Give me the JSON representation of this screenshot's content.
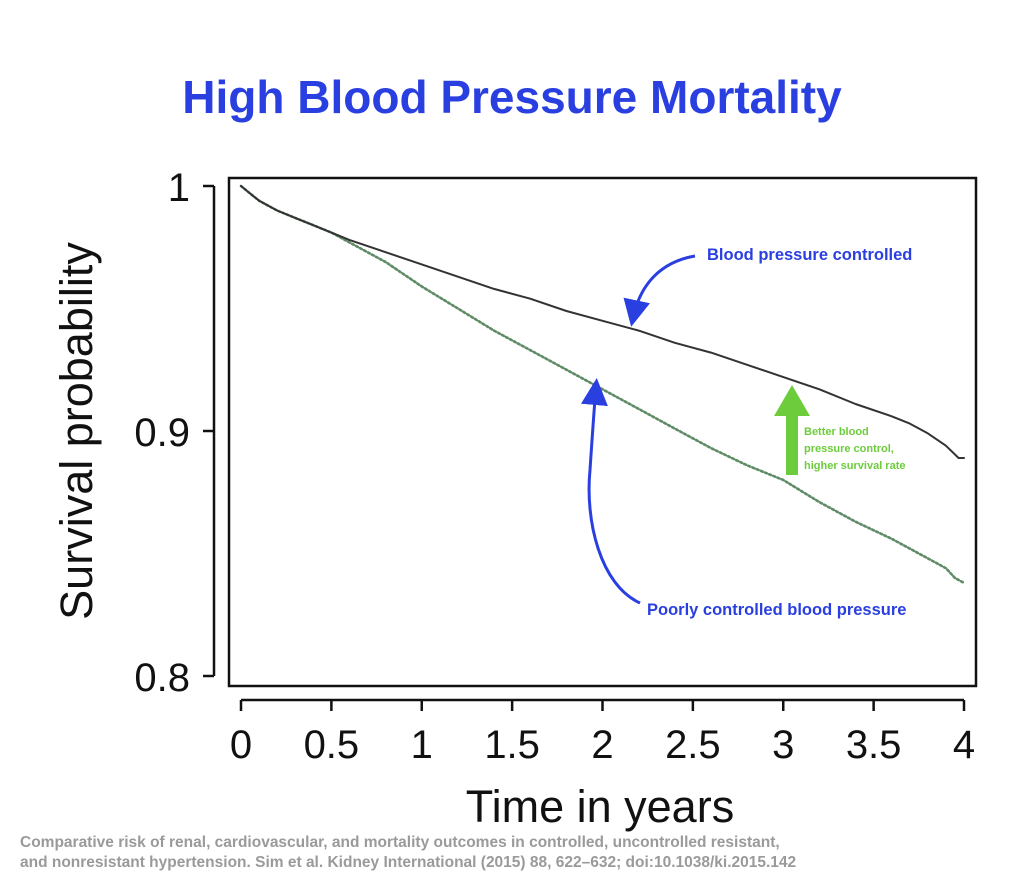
{
  "chart_data": {
    "type": "line",
    "title": "High Blood Pressure Mortality",
    "xlabel": "Time in years",
    "ylabel": "Survival probability",
    "xlim": [
      0,
      4
    ],
    "ylim": [
      0.8,
      1.0
    ],
    "x_ticks": [
      "0",
      "0.5",
      "1",
      "1.5",
      "2",
      "2.5",
      "3",
      "3.5",
      "4"
    ],
    "y_ticks": [
      "0.8",
      "0.9",
      "1"
    ],
    "grid": false,
    "series": [
      {
        "name": "Blood pressure controlled",
        "color": "#333333",
        "style": "solid",
        "x": [
          0,
          0.05,
          0.1,
          0.2,
          0.3,
          0.4,
          0.5,
          0.6,
          0.8,
          1.0,
          1.2,
          1.4,
          1.6,
          1.8,
          2.0,
          2.2,
          2.4,
          2.6,
          2.8,
          3.0,
          3.2,
          3.4,
          3.6,
          3.7,
          3.8,
          3.9,
          3.97,
          4.0
        ],
        "y": [
          1.0,
          0.997,
          0.994,
          0.99,
          0.987,
          0.984,
          0.981,
          0.978,
          0.973,
          0.968,
          0.963,
          0.958,
          0.954,
          0.949,
          0.945,
          0.941,
          0.936,
          0.932,
          0.927,
          0.922,
          0.917,
          0.911,
          0.906,
          0.903,
          0.899,
          0.894,
          0.889,
          0.889
        ]
      },
      {
        "name": "Poorly controlled blood pressure",
        "color": "#5f8c66",
        "style": "dotted",
        "x": [
          0,
          0.05,
          0.1,
          0.2,
          0.3,
          0.4,
          0.5,
          0.6,
          0.8,
          1.0,
          1.2,
          1.4,
          1.6,
          1.8,
          2.0,
          2.2,
          2.4,
          2.6,
          2.8,
          3.0,
          3.2,
          3.4,
          3.6,
          3.8,
          3.9,
          3.95,
          4.0
        ],
        "y": [
          1.0,
          0.997,
          0.994,
          0.99,
          0.987,
          0.984,
          0.981,
          0.977,
          0.969,
          0.959,
          0.95,
          0.941,
          0.933,
          0.925,
          0.917,
          0.909,
          0.901,
          0.893,
          0.886,
          0.88,
          0.871,
          0.863,
          0.856,
          0.848,
          0.844,
          0.84,
          0.838
        ]
      }
    ],
    "annotations": [
      {
        "text": "Blood pressure controlled",
        "color": "#2a3fe0"
      },
      {
        "text": "Poorly controlled blood pressure",
        "color": "#2a3fe0"
      },
      {
        "lines": [
          "Better blood",
          "pressure control,",
          "higher survival rate"
        ],
        "color": "#6dcc3c"
      }
    ]
  },
  "citation": {
    "line1": "Comparative risk of renal, cardiovascular, and  mortality outcomes in controlled, uncontrolled resistant,",
    "line2": "and nonresistant hypertension. Sim et al. Kidney International (2015) 88, 622–632; doi:10.1038/ki.2015.142"
  },
  "colors": {
    "title": "#2a3fe0",
    "annotation_arrow": "#2a3fe0",
    "improvement_arrow": "#6dcc3c",
    "axis": "#111111",
    "citation": "#9a9a9a"
  }
}
